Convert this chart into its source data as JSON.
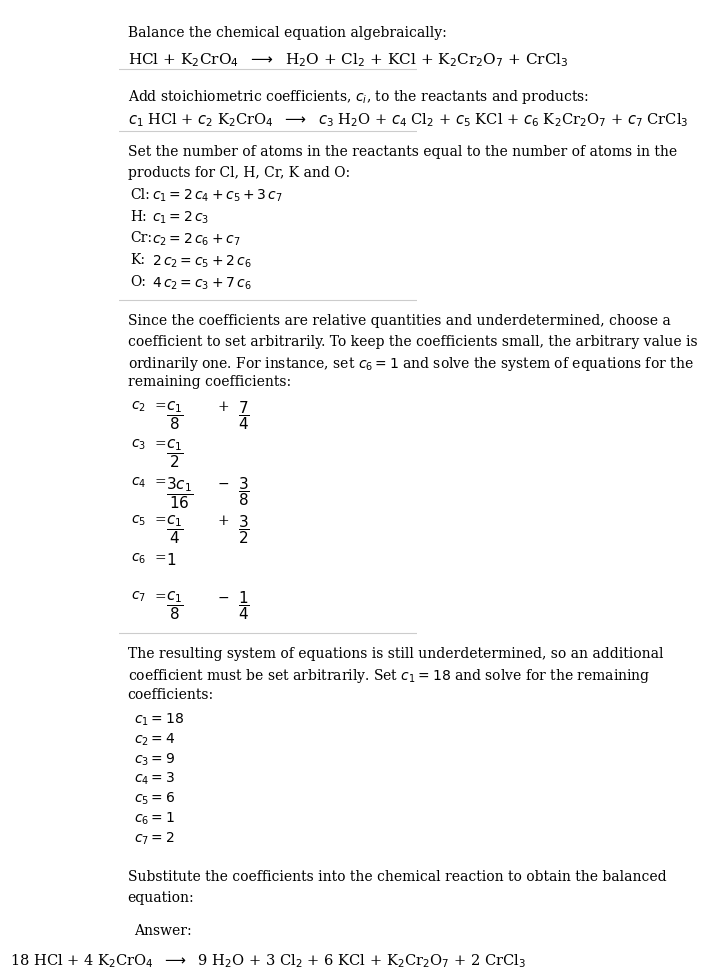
{
  "title_line": "Balance the chemical equation algebraically:",
  "reaction_unbalanced": "HCl + K$_2$CrO$_4$  $\\longrightarrow$  H$_2$O + Cl$_2$ + KCl + K$_2$Cr$_2$O$_7$ + CrCl$_3$",
  "section2_intro": "Add stoichiometric coefficients, $c_i$, to the reactants and products:",
  "reaction_coeffs": "$c_1$ HCl + $c_2$ K$_2$CrO$_4$  $\\longrightarrow$  $c_3$ H$_2$O + $c_4$ Cl$_2$ + $c_5$ KCl + $c_6$ K$_2$Cr$_2$O$_7$ + $c_7$ CrCl$_3$",
  "section3_intro": "Set the number of atoms in the reactants equal to the number of atoms in the\\nproducts for Cl, H, Cr, K and O:",
  "equations": [
    [
      "Cl:",
      " $c_1 = 2\\,c_4 + c_5 + 3\\,c_7$"
    ],
    [
      "H:",
      "  $c_1 = 2\\,c_3$"
    ],
    [
      "Cr:",
      " $c_2 = 2\\,c_6 + c_7$"
    ],
    [
      "K:",
      "  $2\\,c_2 = c_5 + 2\\,c_6$"
    ],
    [
      "O:",
      "  $4\\,c_2 = c_3 + 7\\,c_6$"
    ]
  ],
  "section4_intro": "Since the coefficients are relative quantities and underdetermined, choose a\\ncoefficient to set arbitrarily. To keep the coefficients small, the arbitrary value is\\nordinarily one. For instance, set $c_6 = 1$ and solve the system of equations for the\\nremaining coefficients:",
  "fractions": [
    [
      "$c_2$",
      "=",
      "$\\dfrac{c_1}{8}$",
      "+",
      "$\\dfrac{7}{4}$"
    ],
    [
      "$c_3$",
      "=",
      "$\\dfrac{c_1}{2}$",
      "",
      ""
    ],
    [
      "$c_4$",
      "=",
      "$\\dfrac{3c_1}{16}$",
      "$-$",
      "$\\dfrac{3}{8}$"
    ],
    [
      "$c_5$",
      "=",
      "$\\dfrac{c_1}{4}$",
      "+",
      "$\\dfrac{3}{2}$"
    ],
    [
      "$c_6$",
      "=",
      "$1$",
      "",
      ""
    ],
    [
      "$c_7$",
      "=",
      "$\\dfrac{c_1}{8}$",
      "$-$",
      "$\\dfrac{1}{4}$"
    ]
  ],
  "section5_intro": "The resulting system of equations is still underdetermined, so an additional\\ncoefficient must be set arbitrarily. Set $c_1 = 18$ and solve for the remaining\\ncoefficients:",
  "solution": [
    "$c_1 = 18$",
    "$c_2 = 4$",
    "$c_3 = 9$",
    "$c_4 = 3$",
    "$c_5 = 6$",
    "$c_6 = 1$",
    "$c_7 = 2$"
  ],
  "section6_intro": "Substitute the coefficients into the chemical reaction to obtain the balanced\\nequation:",
  "answer_label": "Answer:",
  "answer_equation": "18 HCl + 4 K$_2$CrO$_4$  $\\longrightarrow$  9 H$_2$O + 3 Cl$_2$ + 6 KCl + K$_2$Cr$_2$O$_7$ + 2 CrCl$_3$",
  "box_color": "#d0e8f0",
  "box_border": "#a0c8e0",
  "bg_color": "#ffffff",
  "text_color": "#000000",
  "line_color": "#cccccc",
  "font_size": 10,
  "title_font_size": 10
}
